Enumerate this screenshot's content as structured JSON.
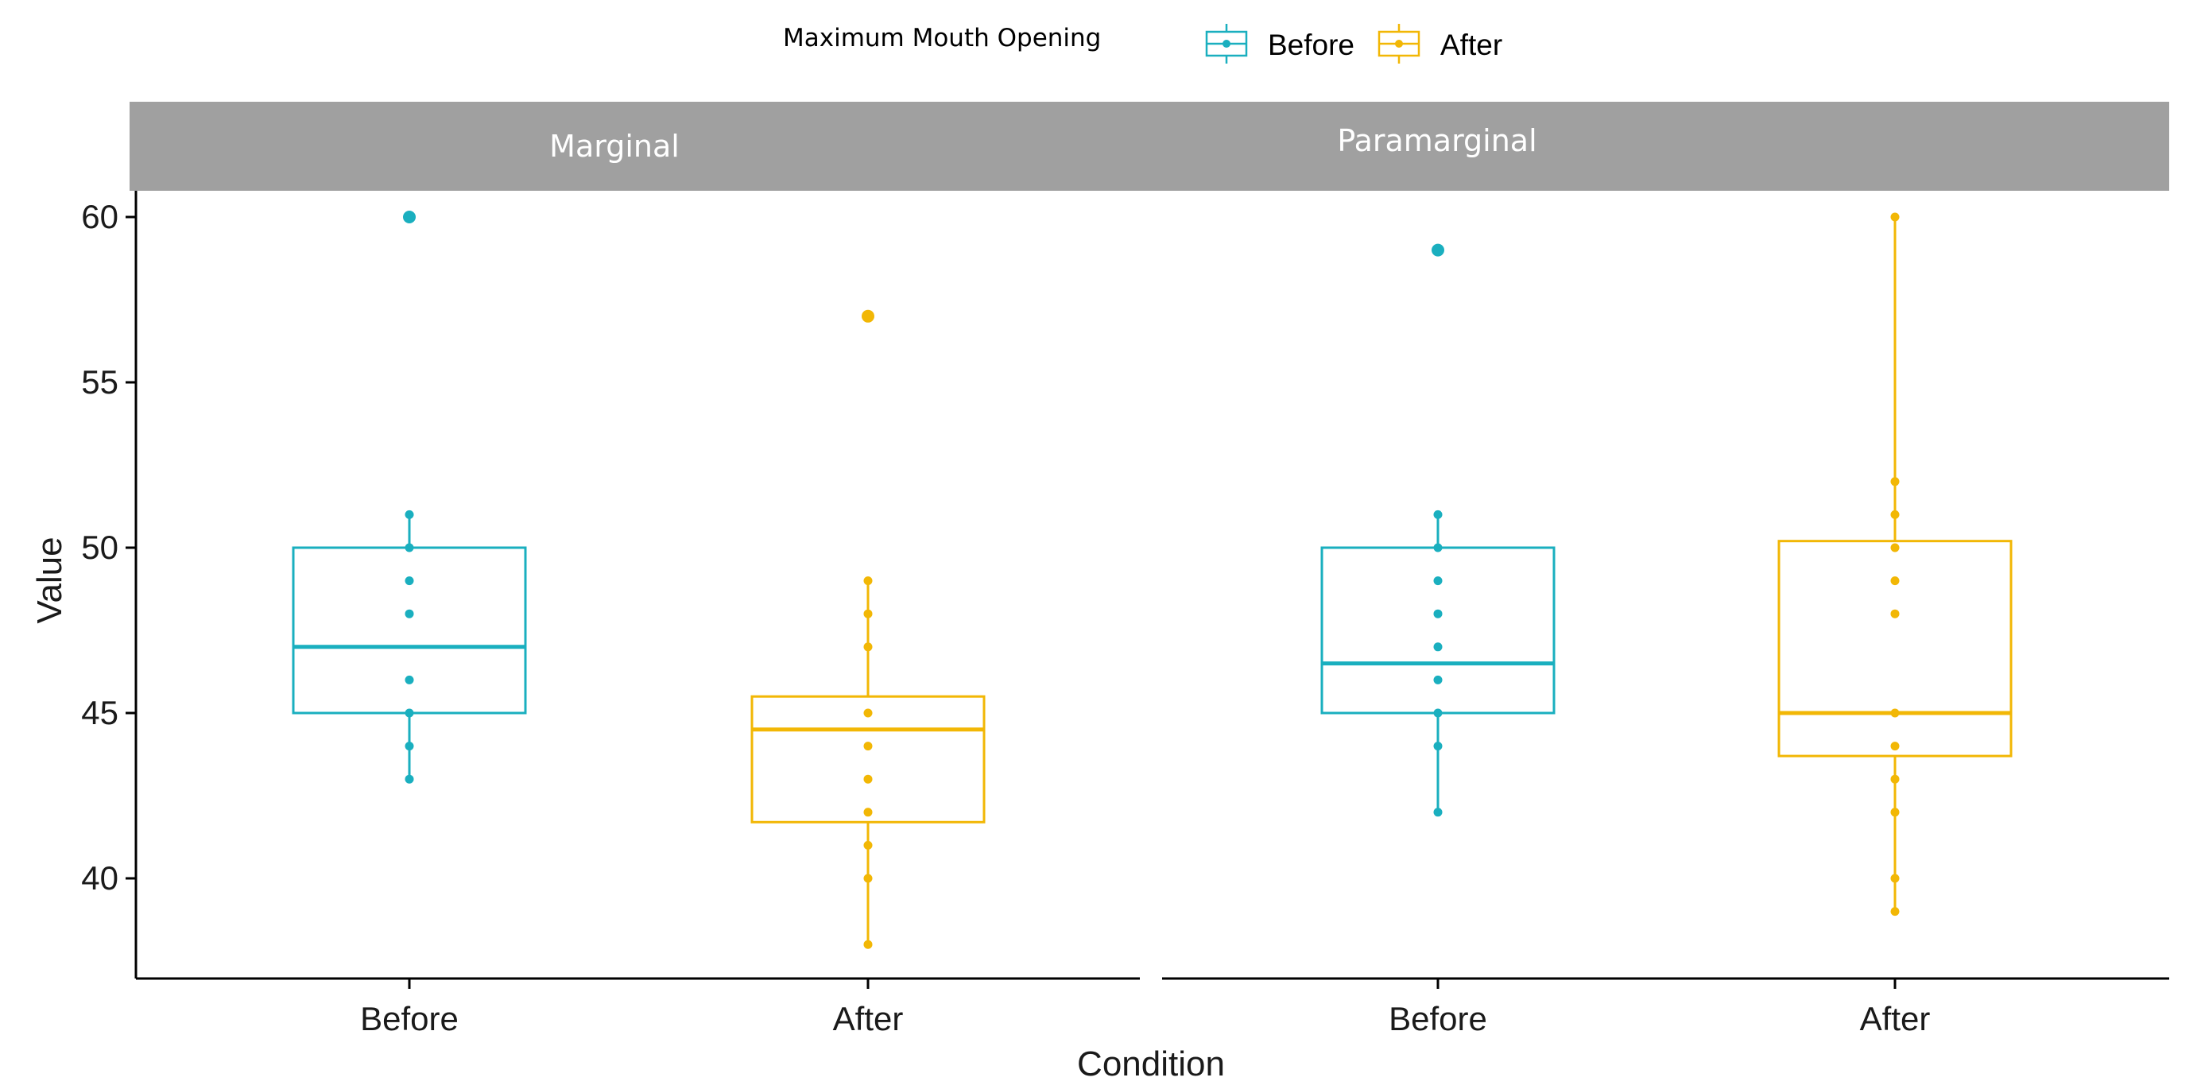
{
  "chart_data": {
    "type": "box",
    "legend": {
      "title": "Maximum Mouth Opening",
      "placement": "top",
      "entries": [
        {
          "name": "Before",
          "color": "#1AAFBF"
        },
        {
          "name": "After",
          "color": "#F2B705"
        }
      ]
    },
    "xlabel": "Condition",
    "ylabel": "Value",
    "ylim": [
      37.0,
      60.8
    ],
    "yticks": [
      40,
      45,
      50,
      55,
      60
    ],
    "categories": [
      "Before",
      "After"
    ],
    "grid": false,
    "facets": [
      {
        "label": "Marginal",
        "boxes": [
          {
            "category": "Before",
            "color": "#1AAFBF",
            "lower_whisker": 43,
            "q1": 45,
            "median": 47,
            "q3": 50,
            "upper_whisker": 51,
            "outliers": [
              60
            ],
            "points": [
              43,
              44,
              45,
              46,
              48,
              49,
              50,
              51
            ]
          },
          {
            "category": "After",
            "color": "#F2B705",
            "lower_whisker": 38,
            "q1": 41.7,
            "median": 44.5,
            "q3": 45.5,
            "upper_whisker": 49,
            "outliers": [
              57
            ],
            "points": [
              38,
              40,
              41,
              42,
              43,
              44,
              45,
              47,
              48,
              49
            ]
          }
        ]
      },
      {
        "label": "Paramarginal",
        "boxes": [
          {
            "category": "Before",
            "color": "#1AAFBF",
            "lower_whisker": 42,
            "q1": 45,
            "median": 46.5,
            "q3": 50,
            "upper_whisker": 51,
            "outliers": [
              59
            ],
            "points": [
              42,
              44,
              45,
              46,
              47,
              48,
              49,
              50,
              51
            ]
          },
          {
            "category": "After",
            "color": "#F2B705",
            "lower_whisker": 39,
            "q1": 43.7,
            "median": 45,
            "q3": 50.2,
            "upper_whisker": 60,
            "outliers": [],
            "points": [
              39,
              40,
              42,
              43,
              44,
              45,
              48,
              49,
              50,
              51,
              52,
              60
            ]
          }
        ]
      }
    ]
  }
}
